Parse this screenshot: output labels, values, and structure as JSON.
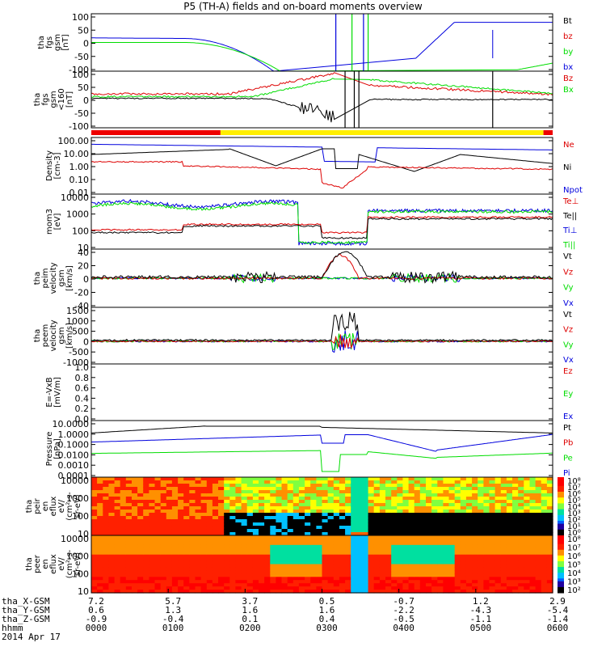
{
  "title": "P5 (TH-A) fields and on-board moments overview",
  "colors": {
    "black": "#000000",
    "red": "#dd0000",
    "green": "#00dd00",
    "blue": "#0000dd",
    "yellow": "#ffee00"
  },
  "chart_data": [
    {
      "type": "line",
      "ylabel": [
        "tha",
        "fgs",
        "gsm",
        "[nT]"
      ],
      "yticks": [
        "100",
        "50",
        "0",
        "-50",
        "-100"
      ],
      "ylim": [
        -100,
        100
      ],
      "legend": [
        {
          "label": "Bt",
          "color": "black"
        },
        {
          "label": "bz",
          "color": "red"
        },
        {
          "label": "by",
          "color": "green"
        },
        {
          "label": "bx",
          "color": "blue"
        }
      ]
    },
    {
      "type": "line",
      "ylabel": [
        "tha",
        "fgs",
        "gsm",
        "<160",
        "[nT]"
      ],
      "yticks": [
        "100",
        "50",
        "0",
        "-50",
        "-100"
      ],
      "ylim": [
        -120,
        100
      ],
      "legend": [
        {
          "label": "Bz",
          "color": "red"
        },
        {
          "label": "Bx",
          "color": "green"
        }
      ]
    },
    {
      "type": "line",
      "ylabel": [
        "Density",
        "[cm-3]"
      ],
      "yticks": [
        "100.00",
        "10.00",
        "1.00",
        "0.10",
        "0.01"
      ],
      "ylim": [
        0.01,
        100
      ],
      "legend": [
        {
          "label": "Ne",
          "color": "red"
        },
        {
          "label": "Ni",
          "color": "black"
        },
        {
          "label": "Npot",
          "color": "blue"
        }
      ]
    },
    {
      "type": "line",
      "ylabel": [
        "mom3",
        "[eV]"
      ],
      "yticks": [
        "10000",
        "1000",
        "100",
        "10"
      ],
      "ylim": [
        10,
        10000
      ],
      "legend": [
        {
          "label": "Te⊥",
          "color": "red"
        },
        {
          "label": "Te||",
          "color": "black"
        },
        {
          "label": "Ti⊥",
          "color": "blue"
        },
        {
          "label": "Ti||",
          "color": "green"
        }
      ]
    },
    {
      "type": "line",
      "ylabel": [
        "tha",
        "peim",
        "velocity",
        "gsm",
        "[km/s]"
      ],
      "yticks": [
        "40",
        "20",
        "0",
        "-20",
        "-40"
      ],
      "ylim": [
        -40,
        40
      ],
      "legend": [
        {
          "label": "Vt",
          "color": "black"
        },
        {
          "label": "Vz",
          "color": "red"
        },
        {
          "label": "Vy",
          "color": "green"
        },
        {
          "label": "Vx",
          "color": "blue"
        }
      ]
    },
    {
      "type": "line",
      "ylabel": [
        "tha",
        "peem",
        "velocity",
        "gsm",
        "[km/s]"
      ],
      "yticks": [
        "1500",
        "1000",
        "500",
        "0",
        "-500",
        "-1000"
      ],
      "ylim": [
        -1000,
        1500
      ],
      "legend": [
        {
          "label": "Vt",
          "color": "black"
        },
        {
          "label": "Vz",
          "color": "red"
        },
        {
          "label": "Vy",
          "color": "green"
        },
        {
          "label": "Vx",
          "color": "blue"
        }
      ]
    },
    {
      "type": "line",
      "ylabel": [
        "E=-VxB",
        "[mV/m]"
      ],
      "yticks": [
        "1.0",
        "0.8",
        "0.6",
        "0.4",
        "0.2",
        "0.0"
      ],
      "ylim": [
        0,
        1
      ],
      "legend": [
        {
          "label": "Ez",
          "color": "red"
        },
        {
          "label": "Ey",
          "color": "green"
        },
        {
          "label": "Ex",
          "color": "blue"
        }
      ]
    },
    {
      "type": "line",
      "ylabel": [
        "Pressure",
        "[nPa]"
      ],
      "yticks": [
        "10.0000",
        "1.0000",
        "0.1000",
        "0.0100",
        "0.0010",
        "0.0001"
      ],
      "ylim": [
        0.0001,
        10
      ],
      "legend": [
        {
          "label": "Pt",
          "color": "black"
        },
        {
          "label": "Pb",
          "color": "red"
        },
        {
          "label": "Pe",
          "color": "green"
        },
        {
          "label": "Pi",
          "color": "blue"
        }
      ]
    },
    {
      "type": "heatmap",
      "ylabel": [
        "tha",
        "peir",
        "en",
        "eflux",
        "eV/",
        "(cm²-s-",
        "sr-eV)"
      ],
      "yticks": [
        "10000",
        "1000",
        "100",
        "10"
      ],
      "ylim": [
        10,
        20000
      ],
      "colorbar": [
        "10⁸",
        "10⁷",
        "10⁶",
        "10⁵",
        "10⁴",
        "10³",
        "10²",
        "10¹",
        "10⁰"
      ]
    },
    {
      "type": "heatmap",
      "ylabel": [
        "tha",
        "peer",
        "en",
        "eflux",
        "eV/",
        "(cm²-s-",
        "sr-eV)"
      ],
      "yticks": [
        "10000",
        "1000",
        "100",
        "10"
      ],
      "ylim": [
        10,
        20000
      ],
      "colorbar": [
        "10⁸",
        "10⁷",
        "10⁶",
        "10⁵",
        "10⁴",
        "10³",
        "10²"
      ]
    }
  ],
  "x_axis": {
    "rows": [
      {
        "label": "tha_X-GSM",
        "values": [
          "7.2",
          "5.7",
          "3.7",
          "0.5",
          "-0.7",
          "1.2",
          "2.9"
        ]
      },
      {
        "label": "tha_Y-GSM",
        "values": [
          "0.6",
          "1.3",
          "1.6",
          "1.6",
          "-2.2",
          "-4.3",
          "-5.4"
        ]
      },
      {
        "label": "tha_Z-GSM",
        "values": [
          "-0.9",
          "-0.4",
          "0.1",
          "0.4",
          "-0.5",
          "-1.1",
          "-1.4"
        ]
      },
      {
        "label": "hhmm",
        "values": [
          "0000",
          "0100",
          "0200",
          "0300",
          "0400",
          "0500",
          "0600"
        ]
      }
    ],
    "date": "2014 Apr 17"
  }
}
